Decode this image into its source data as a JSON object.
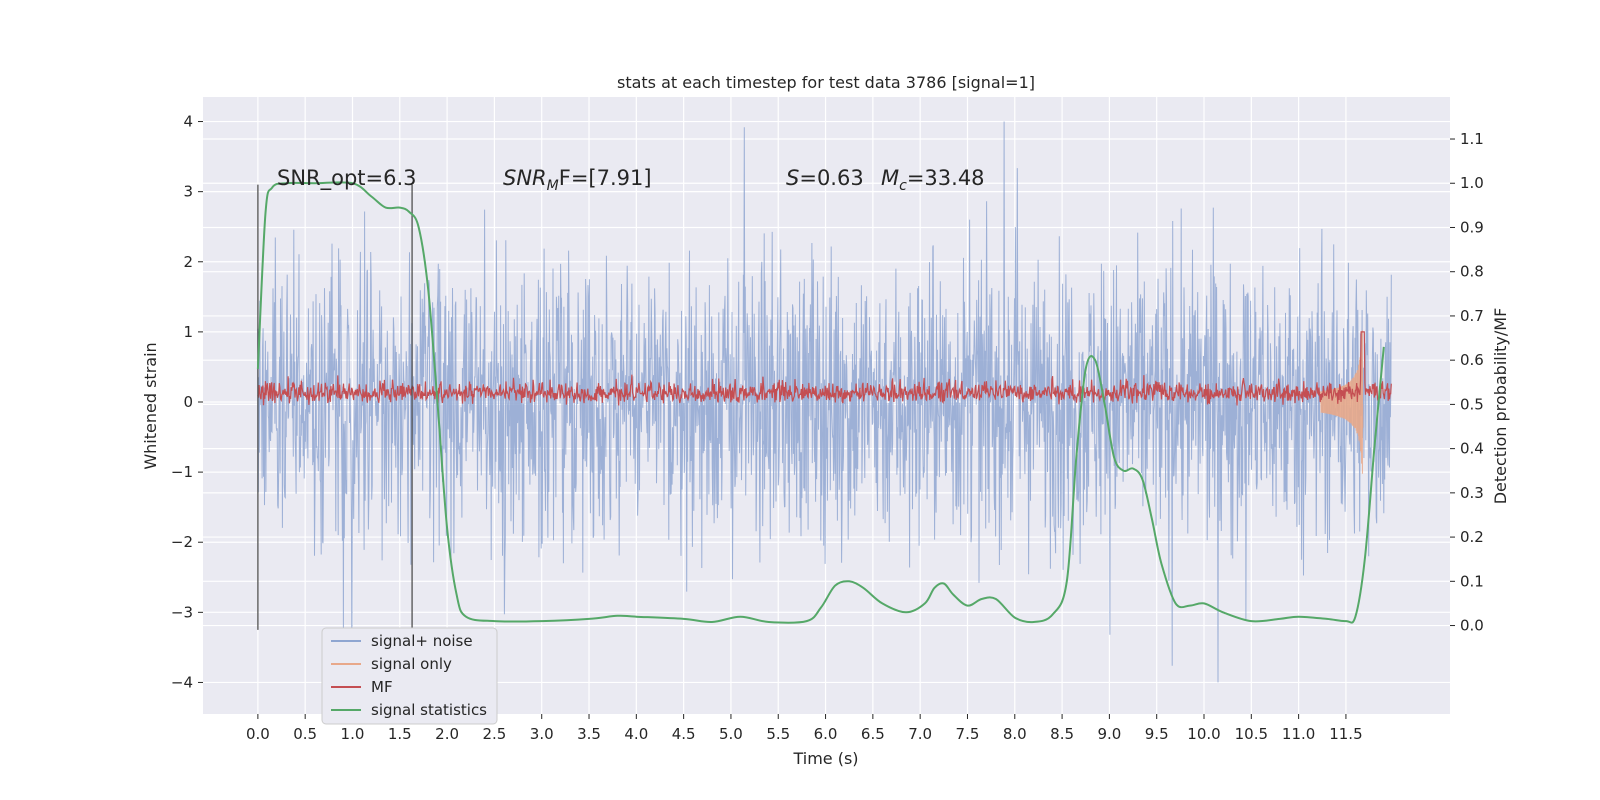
{
  "chart_data": {
    "type": "line",
    "title": "stats at each timestep for test data 3786 [signal=1]",
    "xlabel": "Time (s)",
    "ylabel": "Whitened strain",
    "y2label": "Detection probability/MF",
    "xlim": [
      -0.58,
      12.6
    ],
    "ylim": [
      -4.45,
      4.35
    ],
    "y2lim": [
      -0.2,
      1.195
    ],
    "x_ticks": [
      "0.0",
      "0.5",
      "1.0",
      "1.5",
      "2.0",
      "2.5",
      "3.0",
      "3.5",
      "4.0",
      "4.5",
      "5.0",
      "5.5",
      "6.0",
      "6.5",
      "7.0",
      "7.5",
      "8.0",
      "8.5",
      "9.0",
      "9.5",
      "10.0",
      "10.5",
      "11.0",
      "11.5"
    ],
    "y_ticks": [
      "−4",
      "−3",
      "−2",
      "−1",
      "0",
      "1",
      "2",
      "3",
      "4"
    ],
    "y2_ticks": [
      "0.0",
      "0.1",
      "0.2",
      "0.3",
      "0.4",
      "0.5",
      "0.6",
      "0.7",
      "0.8",
      "0.9",
      "1.0",
      "1.1"
    ],
    "grid": true,
    "legend_position": "lower-left",
    "annotations": {
      "snr_opt": "SNR_opt=6.3",
      "snr_mf_main": "SNR",
      "snr_mf_sub": "M",
      "snr_mf_rest": "F=[7.91]",
      "s_main": "S",
      "s_rest": "=0.63",
      "mc_main": "M",
      "mc_sub": "c",
      "mc_rest": "=33.48"
    },
    "vertical_markers_s": [
      0.0,
      1.63
    ],
    "series": [
      {
        "name": "signal+ noise",
        "color": "#8fa6d1",
        "kind": "noise",
        "x_range": [
          0.0,
          11.98
        ],
        "typical_amplitude": 1.3,
        "max_amplitude": 4.0
      },
      {
        "name": "signal only",
        "color": "#e8a88a",
        "kind": "chirp",
        "merger_time": 11.68,
        "peak_amplitude": 1.5
      },
      {
        "name": "MF",
        "color": "#c44e52",
        "kind": "band",
        "x_range": [
          0.0,
          11.98
        ],
        "range": [
          0.0,
          0.5
        ]
      },
      {
        "name": "signal statistics",
        "color": "#55a868",
        "axis": "right",
        "x": [
          0.0,
          0.08,
          0.15,
          0.3,
          0.6,
          1.0,
          1.2,
          1.35,
          1.5,
          1.6,
          1.7,
          1.8,
          1.9,
          2.0,
          2.1,
          2.2,
          2.5,
          3.0,
          3.5,
          3.8,
          4.0,
          4.5,
          4.8,
          5.1,
          5.4,
          5.8,
          5.95,
          6.1,
          6.25,
          6.4,
          6.6,
          6.85,
          7.05,
          7.15,
          7.25,
          7.35,
          7.5,
          7.65,
          7.8,
          8.0,
          8.2,
          8.4,
          8.55,
          8.65,
          8.75,
          8.85,
          8.95,
          9.05,
          9.15,
          9.25,
          9.35,
          9.45,
          9.55,
          9.7,
          9.85,
          10.0,
          10.2,
          10.5,
          10.8,
          11.0,
          11.3,
          11.5,
          11.6,
          11.7,
          11.8,
          11.9
        ],
        "y": [
          0.58,
          0.93,
          0.99,
          1.0,
          1.0,
          1.0,
          0.97,
          0.945,
          0.945,
          0.935,
          0.9,
          0.76,
          0.5,
          0.22,
          0.07,
          0.02,
          0.01,
          0.01,
          0.015,
          0.022,
          0.02,
          0.015,
          0.008,
          0.02,
          0.008,
          0.01,
          0.04,
          0.09,
          0.1,
          0.085,
          0.05,
          0.03,
          0.05,
          0.085,
          0.095,
          0.07,
          0.045,
          0.06,
          0.06,
          0.018,
          0.008,
          0.025,
          0.1,
          0.38,
          0.58,
          0.6,
          0.5,
          0.38,
          0.35,
          0.355,
          0.33,
          0.24,
          0.14,
          0.05,
          0.045,
          0.05,
          0.03,
          0.01,
          0.015,
          0.02,
          0.015,
          0.01,
          0.02,
          0.15,
          0.4,
          0.63
        ]
      }
    ]
  }
}
